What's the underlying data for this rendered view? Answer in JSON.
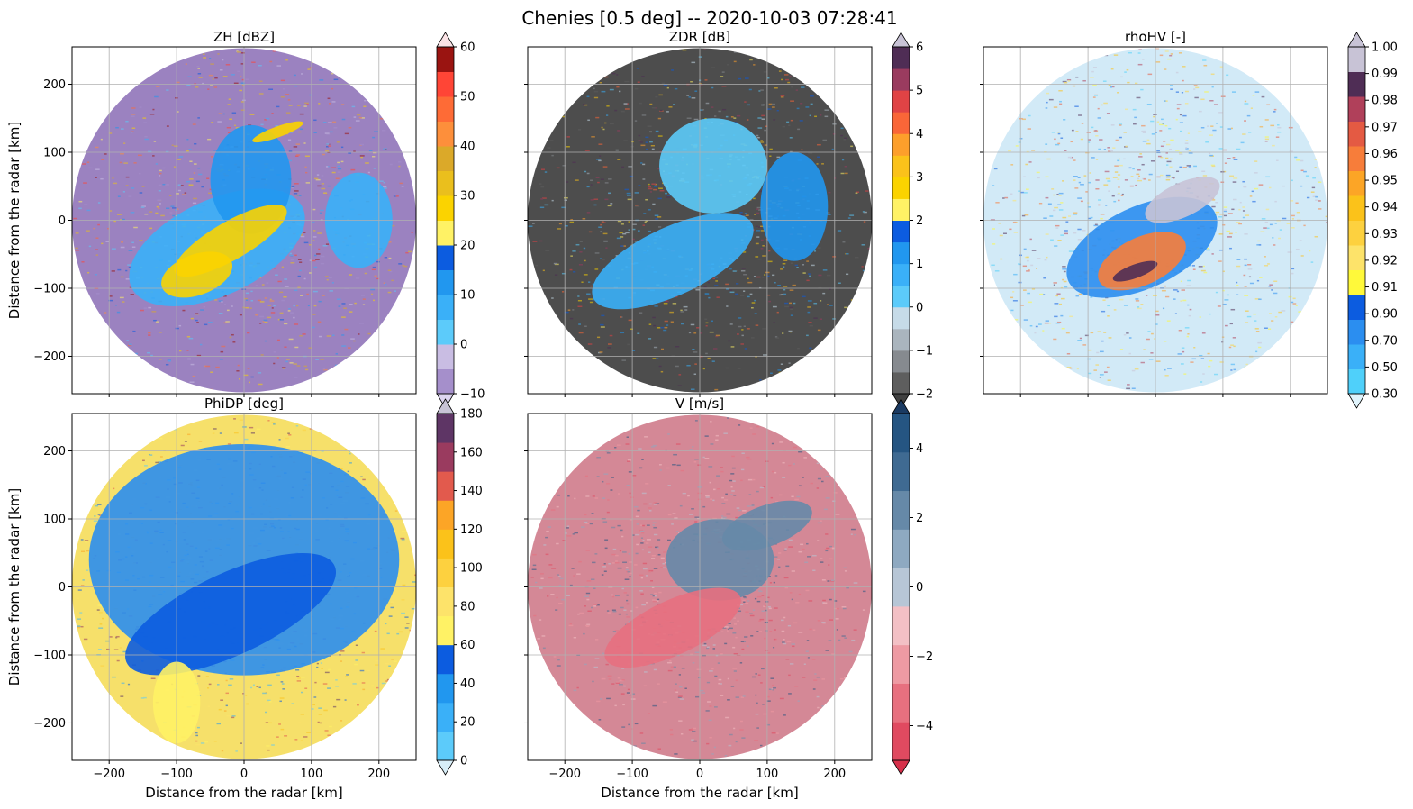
{
  "figure": {
    "title": "Chenies [0.5 deg] -- 2020-10-03 07:28:41"
  },
  "axes_common": {
    "xlabel": "Distance from the radar [km]",
    "ylabel": "Distance from the radar [km]",
    "xlim": [
      -255,
      255
    ],
    "ylim": [
      -255,
      255
    ],
    "xticks": [
      -200,
      -100,
      0,
      100,
      200
    ],
    "yticks": [
      -200,
      -100,
      0,
      100,
      200
    ],
    "grid": true,
    "radar_range_km": 255
  },
  "panels": [
    {
      "key": "zh",
      "title": "ZH [dBZ]",
      "background_color": "#9b82c0",
      "colorbar": {
        "colors": [
          "#a58fcb",
          "#c9bde3",
          "#5ccbfa",
          "#3ab0f8",
          "#2197ef",
          "#0c5ce0",
          "#fff265",
          "#fbd300",
          "#eabf1d",
          "#dba929",
          "#fd8f3b",
          "#fe6b36",
          "#ff4536",
          "#9a1411"
        ],
        "under": "#ddd5f0",
        "over": "#fbe3e6",
        "ticks": [
          -10,
          0,
          10,
          20,
          30,
          40,
          50,
          60
        ],
        "tick_labels": [
          "−10",
          "0",
          "10",
          "20",
          "30",
          "40",
          "50",
          "60"
        ],
        "vmin": -10,
        "vmax": 60
      },
      "features": [
        {
          "type": "echo",
          "color": "#3ab0f8",
          "cx": -40,
          "cy": -40,
          "rx": 140,
          "ry": 70,
          "angle_deg": 25
        },
        {
          "type": "echo",
          "color": "#2197ef",
          "cx": 10,
          "cy": 60,
          "rx": 60,
          "ry": 80,
          "angle_deg": 0
        },
        {
          "type": "echo",
          "color": "#3ab0f8",
          "cx": 170,
          "cy": 0,
          "rx": 50,
          "ry": 70,
          "angle_deg": 0
        },
        {
          "type": "echo",
          "color": "#fbd300",
          "cx": -20,
          "cy": -30,
          "rx": 95,
          "ry": 28,
          "angle_deg": 30
        },
        {
          "type": "echo",
          "color": "#fbd300",
          "cx": -70,
          "cy": -80,
          "rx": 55,
          "ry": 30,
          "angle_deg": 20
        },
        {
          "type": "echo",
          "color": "#fbd300",
          "cx": 50,
          "cy": 130,
          "rx": 40,
          "ry": 8,
          "angle_deg": 20
        }
      ]
    },
    {
      "key": "zdr",
      "title": "ZDR [dB]",
      "background_color": "#4d4d4d",
      "colorbar": {
        "colors": [
          "#5e5e5e",
          "#868a8f",
          "#aab5be",
          "#c6dbe8",
          "#5ccbfa",
          "#3ab0f8",
          "#2197ef",
          "#0c5ce0",
          "#fff265",
          "#fbd300",
          "#fbc21a",
          "#fd9f2b",
          "#f96638",
          "#e04345",
          "#9a3b5f",
          "#4f2d55"
        ],
        "under": "#404040",
        "over": "#c8c3d6",
        "ticks": [
          -2,
          -1,
          0,
          1,
          2,
          3,
          4,
          5,
          6
        ],
        "tick_labels": [
          "−2",
          "−1",
          "0",
          "1",
          "2",
          "3",
          "4",
          "5",
          "6"
        ],
        "vmin": -2,
        "vmax": 6
      },
      "features": [
        {
          "type": "echo",
          "color": "#5ccbfa",
          "cx": 20,
          "cy": 80,
          "rx": 80,
          "ry": 70,
          "angle_deg": 0
        },
        {
          "type": "echo",
          "color": "#3ab0f8",
          "cx": -40,
          "cy": -60,
          "rx": 130,
          "ry": 50,
          "angle_deg": 25
        },
        {
          "type": "echo",
          "color": "#2197ef",
          "cx": 140,
          "cy": 20,
          "rx": 50,
          "ry": 80,
          "angle_deg": 0
        }
      ]
    },
    {
      "key": "rhohv",
      "title": "rhoHV [-]",
      "background_color": "#d2eaf7",
      "colorbar": {
        "colors": [
          "#4fd0fa",
          "#3ab0f8",
          "#2b8ef0",
          "#0c5ce0",
          "#fff93a",
          "#fde36a",
          "#fdd13f",
          "#fbc21a",
          "#fca526",
          "#f77d3a",
          "#e45a43",
          "#b0405a",
          "#4f2d55",
          "#c8c3d6"
        ],
        "under": "#e0f4fc",
        "over": "#c8c3d6",
        "ticks": [
          0.3,
          0.5,
          0.7,
          0.9,
          0.91,
          0.92,
          0.93,
          0.94,
          0.95,
          0.96,
          0.97,
          0.98,
          0.99,
          1.0
        ],
        "tick_labels": [
          "0.30",
          "0.50",
          "0.70",
          "0.90",
          "0.91",
          "0.92",
          "0.93",
          "0.94",
          "0.95",
          "0.96",
          "0.97",
          "0.98",
          "0.99",
          "1.00"
        ],
        "vmin": 0,
        "vmax": 13
      },
      "features": [
        {
          "type": "echo",
          "color": "#2b8ef0",
          "cx": -20,
          "cy": -40,
          "rx": 120,
          "ry": 60,
          "angle_deg": 25
        },
        {
          "type": "echo",
          "color": "#f77d3a",
          "cx": -20,
          "cy": -60,
          "rx": 70,
          "ry": 35,
          "angle_deg": 25
        },
        {
          "type": "echo",
          "color": "#c8c3d6",
          "cx": 40,
          "cy": 30,
          "rx": 60,
          "ry": 25,
          "angle_deg": 25
        },
        {
          "type": "echo",
          "color": "#4f2d55",
          "cx": -30,
          "cy": -75,
          "rx": 35,
          "ry": 10,
          "angle_deg": 20
        }
      ]
    },
    {
      "key": "phidp",
      "title": "PhiDP [deg]",
      "background_color": "#f6e06a",
      "colorbar": {
        "colors": [
          "#5ccbfa",
          "#3ab0f8",
          "#2197ef",
          "#0c5ce0",
          "#fff265",
          "#fde36a",
          "#fdd13f",
          "#fbc21a",
          "#fca526",
          "#e25a4d",
          "#9a3b5f",
          "#5e3565"
        ],
        "under": "#d8eef8",
        "over": "#c8c3d6",
        "ticks": [
          0,
          20,
          40,
          60,
          80,
          100,
          120,
          140,
          160,
          180
        ],
        "tick_labels": [
          "0",
          "20",
          "40",
          "60",
          "80",
          "100",
          "120",
          "140",
          "160",
          "180"
        ],
        "vmin": 0,
        "vmax": 180
      },
      "features": [
        {
          "type": "echo",
          "color": "#2b8ef0",
          "cx": 0,
          "cy": 40,
          "rx": 230,
          "ry": 170,
          "angle_deg": 0
        },
        {
          "type": "echo",
          "color": "#0c5ce0",
          "cx": -20,
          "cy": -40,
          "rx": 170,
          "ry": 60,
          "angle_deg": 25
        },
        {
          "type": "echo",
          "color": "#fff265",
          "cx": -100,
          "cy": -170,
          "rx": 35,
          "ry": 60,
          "angle_deg": 0
        }
      ]
    },
    {
      "key": "v",
      "title": "V [m/s]",
      "background_color": "#d48896",
      "colorbar": {
        "colors": [
          "#e04a60",
          "#e7707f",
          "#ee9aa3",
          "#f3c0c5",
          "#b7c6d6",
          "#8ea9c1",
          "#6689a8",
          "#3f6a92",
          "#255582"
        ],
        "under": "#d6304a",
        "over": "#1a3a62",
        "ticks": [
          -4,
          -2,
          0,
          2,
          4
        ],
        "tick_labels": [
          "−4",
          "−2",
          "0",
          "2",
          "4"
        ],
        "vmin": -5,
        "vmax": 5
      },
      "features": [
        {
          "type": "echo",
          "color": "#6689a8",
          "cx": 30,
          "cy": 40,
          "rx": 80,
          "ry": 60,
          "angle_deg": 0
        },
        {
          "type": "echo",
          "color": "#e7707f",
          "cx": -40,
          "cy": -60,
          "rx": 110,
          "ry": 40,
          "angle_deg": 25
        },
        {
          "type": "echo",
          "color": "#6689a8",
          "cx": 100,
          "cy": 90,
          "rx": 70,
          "ry": 30,
          "angle_deg": 20
        }
      ]
    }
  ]
}
